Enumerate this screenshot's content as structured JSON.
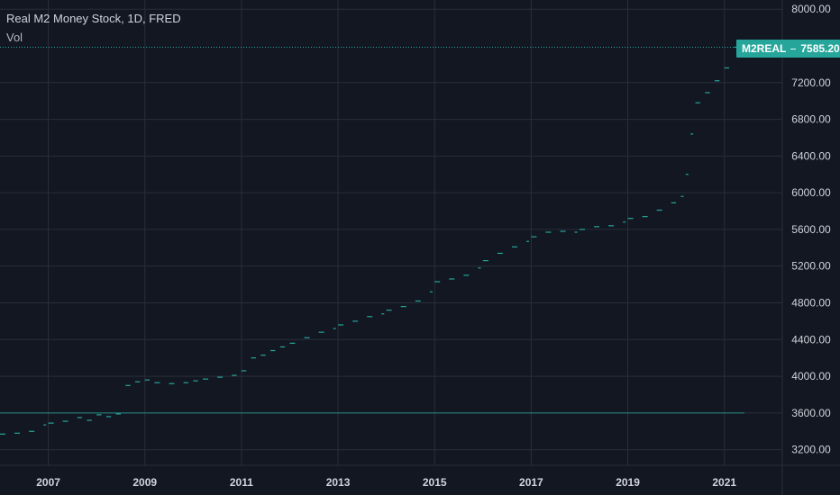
{
  "legend": {
    "title": "Real M2 Money Stock, 1D, FRED",
    "volume_label": "Vol"
  },
  "last_price": {
    "symbol": "M2REAL",
    "value": "7585.20"
  },
  "colors": {
    "background": "#131722",
    "grid": "#2a2e39",
    "series": "#26a69a",
    "axis_text": "#d1d4dc"
  },
  "chart_data": {
    "type": "line",
    "style": "step-dashes",
    "title": "Real M2 Money Stock",
    "interval": "1D",
    "source": "FRED",
    "x_ticks": [
      "2007",
      "2009",
      "2011",
      "2013",
      "2015",
      "2017",
      "2019",
      "2021"
    ],
    "y_ticks": [
      "3200.00",
      "3600.00",
      "4000.00",
      "4400.00",
      "4800.00",
      "5200.00",
      "5600.00",
      "6000.00",
      "6400.00",
      "6800.00",
      "7200.00",
      "8000.00"
    ],
    "x_range": [
      2006.0,
      2022.2
    ],
    "y_range": [
      3030,
      8100
    ],
    "reference_line": 3600,
    "last_value": 7585.2,
    "grid": true,
    "series": [
      {
        "x": [
          2006.0,
          2006.3,
          2006.6,
          2006.9,
          2007.0,
          2007.3,
          2007.6,
          2007.8,
          2008.0,
          2008.2,
          2008.4,
          2008.6,
          2008.8,
          2009.0,
          2009.2,
          2009.5,
          2009.8,
          2010.0,
          2010.2,
          2010.5,
          2010.8,
          2011.0,
          2011.2,
          2011.4,
          2011.6,
          2011.8,
          2012.0,
          2012.3,
          2012.6,
          2012.9,
          2013.0,
          2013.3,
          2013.6,
          2013.9,
          2014.0,
          2014.3,
          2014.6,
          2014.9,
          2015.0,
          2015.3,
          2015.6,
          2015.9,
          2016.0,
          2016.3,
          2016.6,
          2016.9,
          2017.0,
          2017.3,
          2017.6,
          2017.9,
          2018.0,
          2018.3,
          2018.6,
          2018.9,
          2019.0,
          2019.3,
          2019.6,
          2019.9,
          2020.1,
          2020.2,
          2020.3,
          2020.4,
          2020.6,
          2020.8,
          2021.0,
          2021.2
        ],
        "y": [
          3370,
          3380,
          3400,
          3470,
          3490,
          3510,
          3550,
          3520,
          3580,
          3560,
          3590,
          3900,
          3940,
          3960,
          3930,
          3920,
          3930,
          3950,
          3970,
          3990,
          4010,
          4060,
          4200,
          4230,
          4280,
          4320,
          4360,
          4420,
          4480,
          4520,
          4560,
          4600,
          4650,
          4680,
          4720,
          4760,
          4820,
          4920,
          5030,
          5060,
          5100,
          5180,
          5260,
          5340,
          5410,
          5470,
          5520,
          5570,
          5580,
          5570,
          5600,
          5630,
          5640,
          5680,
          5720,
          5740,
          5810,
          5890,
          5960,
          6200,
          6640,
          6980,
          7090,
          7220,
          7360,
          7585.2
        ]
      }
    ]
  }
}
